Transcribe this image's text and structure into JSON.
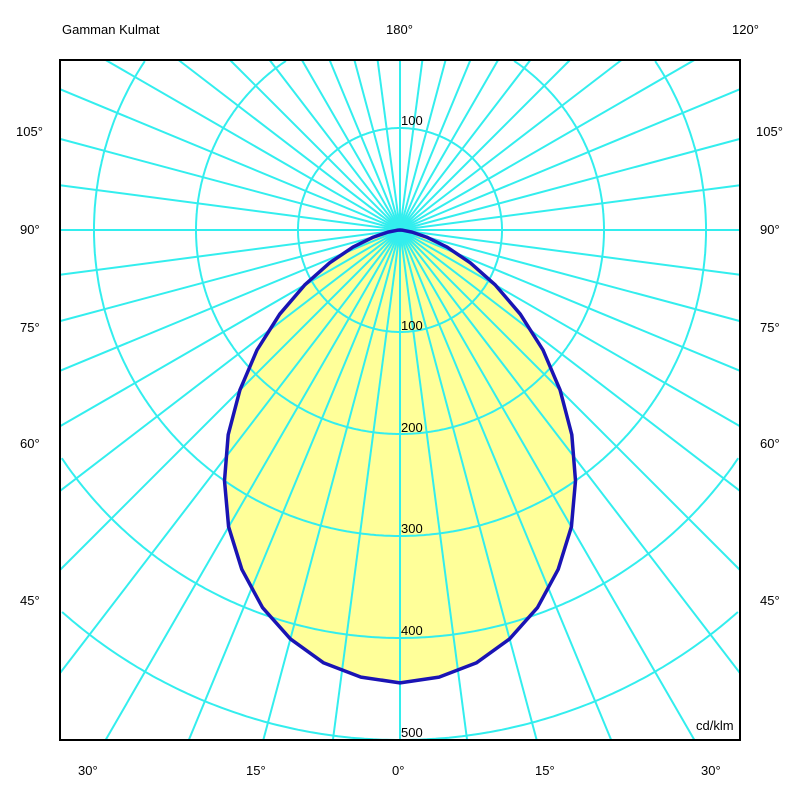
{
  "chart_data": {
    "type": "polar",
    "title": "Gamman Kulmat",
    "unit": "cd/klm",
    "radial_ticks": [
      100,
      200,
      300,
      400,
      500
    ],
    "upper_tick": "100",
    "angle_labels": {
      "top": [
        "180°",
        "120°"
      ],
      "left": [
        "105°",
        "90°",
        "75°",
        "60°",
        "45°"
      ],
      "right": [
        "105°",
        "90°",
        "75°",
        "60°",
        "45°"
      ],
      "bottom": [
        "30°",
        "15°",
        "0°",
        "15°",
        "30°"
      ]
    },
    "angular_grid_step_deg": 7.5,
    "series": [
      {
        "angles_deg": [
          0,
          5,
          10,
          15,
          20,
          25,
          30,
          35,
          40,
          45,
          50,
          55,
          60,
          65,
          70,
          75,
          80,
          85,
          90
        ],
        "values": [
          444,
          440,
          431,
          415,
          394,
          367,
          336,
          300,
          262,
          222,
          183,
          144,
          108,
          76,
          49,
          27,
          12,
          3,
          0
        ]
      }
    ],
    "colors": {
      "grid": "#33eeee",
      "curve": "#1a14b4",
      "fill": "#ffff99",
      "frame": "#000000"
    }
  }
}
